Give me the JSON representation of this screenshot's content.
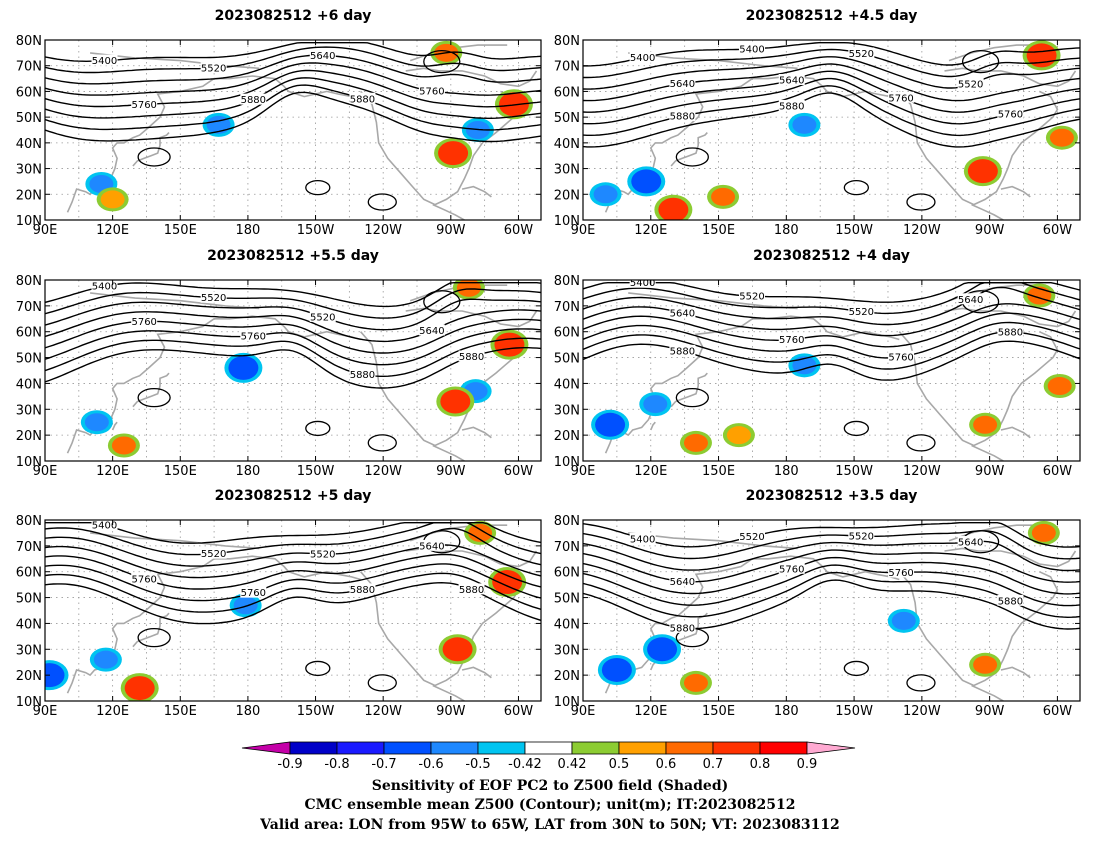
{
  "chart_data": {
    "type": "heatmap",
    "panels": [
      {
        "title": "2023082512 +6 day",
        "contour_labels": [
          "5400",
          "5520",
          "5640",
          "5760",
          "5760",
          "5880",
          "5880"
        ],
        "shading": [
          {
            "lon": 167,
            "lat": 47,
            "value": -0.6
          },
          {
            "lon": 282,
            "lat": 45,
            "value": -0.6
          },
          {
            "lon": 115,
            "lat": 24,
            "value": -0.6
          },
          {
            "lon": 271,
            "lat": 36,
            "value": 0.7
          },
          {
            "lon": 268,
            "lat": 75,
            "value": 0.6
          },
          {
            "lon": 298,
            "lat": 55,
            "value": 0.7
          },
          {
            "lon": 120,
            "lat": 18,
            "value": 0.5
          }
        ]
      },
      {
        "title": "2023082512 +4.5 day",
        "contour_labels": [
          "5400",
          "5400",
          "5520",
          "5520",
          "5640",
          "5640",
          "5760",
          "5760",
          "5880",
          "5880"
        ],
        "shading": [
          {
            "lon": 100,
            "lat": 20,
            "value": -0.6
          },
          {
            "lon": 118,
            "lat": 25,
            "value": -0.7
          },
          {
            "lon": 188,
            "lat": 47,
            "value": -0.6
          },
          {
            "lon": 130,
            "lat": 14,
            "value": 0.7
          },
          {
            "lon": 152,
            "lat": 19,
            "value": 0.6
          },
          {
            "lon": 267,
            "lat": 29,
            "value": 0.7
          },
          {
            "lon": 293,
            "lat": 74,
            "value": 0.7
          },
          {
            "lon": 302,
            "lat": 42,
            "value": 0.6
          }
        ]
      },
      {
        "title": "2023082512 +5.5 day",
        "contour_labels": [
          "5400",
          "5520",
          "5520",
          "5640",
          "5760",
          "5760",
          "5880",
          "5880"
        ],
        "shading": [
          {
            "lon": 178,
            "lat": 46,
            "value": -0.7
          },
          {
            "lon": 281,
            "lat": 37,
            "value": -0.6
          },
          {
            "lon": 113,
            "lat": 25,
            "value": -0.6
          },
          {
            "lon": 272,
            "lat": 33,
            "value": 0.7
          },
          {
            "lon": 296,
            "lat": 55,
            "value": 0.7
          },
          {
            "lon": 278,
            "lat": 77,
            "value": 0.6
          },
          {
            "lon": 125,
            "lat": 16,
            "value": 0.6
          }
        ]
      },
      {
        "title": "2023082512 +4 day",
        "contour_labels": [
          "5400",
          "5520",
          "5520",
          "5640",
          "5640",
          "5760",
          "5760",
          "5880",
          "5880"
        ],
        "shading": [
          {
            "lon": 102,
            "lat": 24,
            "value": -0.7
          },
          {
            "lon": 122,
            "lat": 32,
            "value": -0.6
          },
          {
            "lon": 188,
            "lat": 47,
            "value": -0.6
          },
          {
            "lon": 140,
            "lat": 17,
            "value": 0.6
          },
          {
            "lon": 159,
            "lat": 20,
            "value": 0.5
          },
          {
            "lon": 268,
            "lat": 24,
            "value": 0.6
          },
          {
            "lon": 292,
            "lat": 74,
            "value": 0.6
          },
          {
            "lon": 301,
            "lat": 39,
            "value": 0.6
          }
        ]
      },
      {
        "title": "2023082512 +5 day",
        "contour_labels": [
          "5400",
          "5520",
          "5520",
          "5640",
          "5760",
          "5760",
          "5880",
          "5880"
        ],
        "shading": [
          {
            "lon": 92,
            "lat": 20,
            "value": -0.7
          },
          {
            "lon": 117,
            "lat": 26,
            "value": -0.6
          },
          {
            "lon": 179,
            "lat": 47,
            "value": -0.6
          },
          {
            "lon": 132,
            "lat": 15,
            "value": 0.7
          },
          {
            "lon": 273,
            "lat": 30,
            "value": 0.7
          },
          {
            "lon": 295,
            "lat": 56,
            "value": 0.7
          },
          {
            "lon": 283,
            "lat": 75,
            "value": 0.6
          }
        ]
      },
      {
        "title": "2023082512 +3.5 day",
        "contour_labels": [
          "5400",
          "5520",
          "5520",
          "5640",
          "5640",
          "5760",
          "5760",
          "5880",
          "5880"
        ],
        "shading": [
          {
            "lon": 105,
            "lat": 22,
            "value": -0.7
          },
          {
            "lon": 125,
            "lat": 30,
            "value": -0.7
          },
          {
            "lon": 232,
            "lat": 41,
            "value": -0.6
          },
          {
            "lon": 140,
            "lat": 17,
            "value": 0.6
          },
          {
            "lon": 268,
            "lat": 24,
            "value": 0.6
          },
          {
            "lon": 294,
            "lat": 75,
            "value": 0.6
          }
        ]
      }
    ],
    "x_ticks": [
      "90E",
      "120E",
      "150E",
      "180",
      "150W",
      "120W",
      "90W",
      "60W"
    ],
    "y_ticks": [
      "10N",
      "20N",
      "30N",
      "40N",
      "50N",
      "60N",
      "70N",
      "80N"
    ],
    "lon_range": [
      90,
      310
    ],
    "lat_range": [
      10,
      80
    ],
    "colorbar": {
      "ticks": [
        "-0.9",
        "-0.8",
        "-0.7",
        "-0.6",
        "-0.5",
        "-0.42",
        "0.42",
        "0.5",
        "0.6",
        "0.7",
        "0.8",
        "0.9"
      ],
      "levels": [
        -0.9,
        -0.8,
        -0.7,
        -0.6,
        -0.5,
        -0.42,
        0.42,
        0.5,
        0.6,
        0.7,
        0.8,
        0.9
      ],
      "colors": [
        "#c400a8",
        "#0000c8",
        "#1a1aff",
        "#0050ff",
        "#1e88ff",
        "#00c4f0",
        "#ffffff",
        "#8ccc32",
        "#ffa000",
        "#ff6a00",
        "#ff3200",
        "#ff0000",
        "#ffaad2"
      ]
    },
    "contour_color": "#000000",
    "coast_color": "#a8a8a8",
    "grid": true
  },
  "footer": {
    "line1": "Sensitivity of EOF PC2 to Z500 field (Shaded)",
    "line2": "CMC ensemble mean Z500 (Contour); unit(m); IT:2023082512",
    "line3": "Valid area: LON from 95W to 65W, LAT from 30N to 50N; VT: 2023083112"
  }
}
